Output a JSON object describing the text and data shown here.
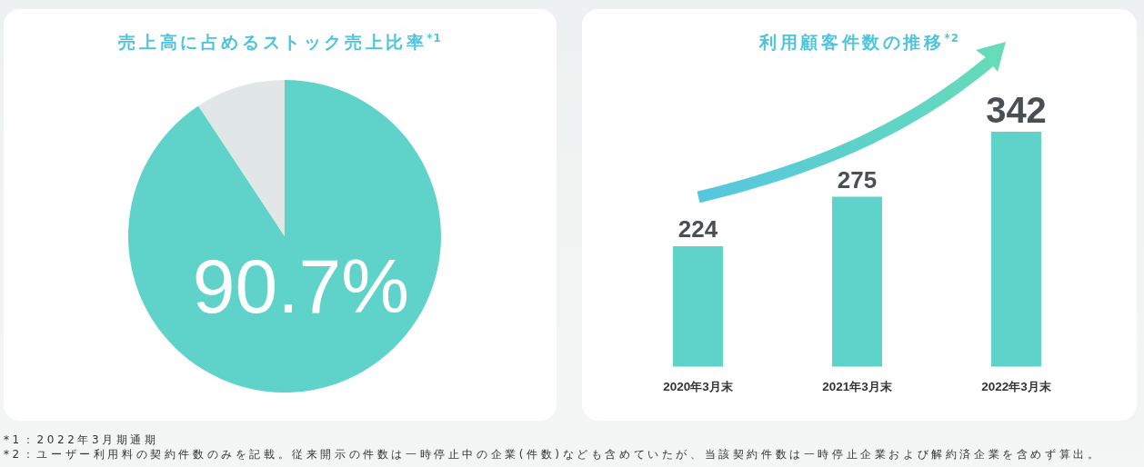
{
  "chart_data": [
    {
      "type": "pie",
      "title": "売上高に占めるストック売上比率$^{*1}$",
      "categories": [
        null,
        null
      ],
      "values": [
        90.7,
        9.3
      ],
      "colors": [
        "#5fd3c9",
        "#e1e6e6"
      ],
      "value_labels": [
        "90.7%",
        null
      ],
      "annotations": [
        "*1：2022年3月期通期"
      ]
    },
    {
      "type": "bar",
      "title": "利用顧客件数の推移$^{*2}$",
      "categories": [
        "2020年3月末",
        "2021年3月末",
        "2022年3月末"
      ],
      "values": [
        224,
        275,
        342
      ],
      "color": "#5fd3c9",
      "data_labels": true,
      "ylim": [
        100,
        342
      ],
      "tick_labels": "x",
      "annotations": [
        "*2：ユーザー利用料の契約件数のみを記載。従来開示の件数は一時停止中の企業(件数)なども含めていたが、当該契約件数は一時停止企業および解約済企業を含めず算出。"
      ]
    }
  ]
}
